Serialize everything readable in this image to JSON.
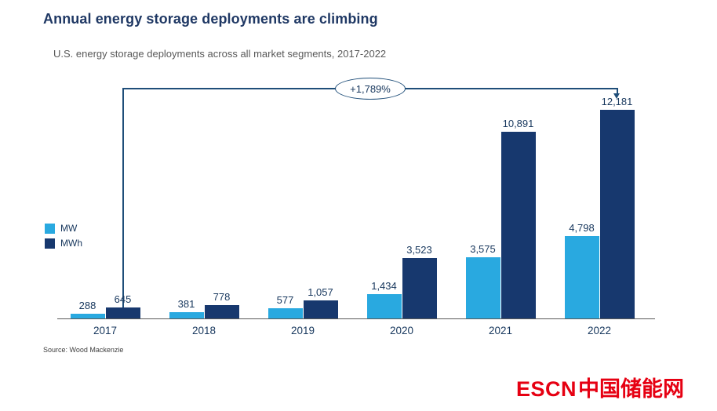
{
  "page": {
    "title": "Annual energy storage deployments are climbing",
    "subtitle": "U.S. energy storage deployments across all market segments, 2017-2022",
    "source": "Source: Wood Mackenzie",
    "logo_text": "ESCN",
    "logo_cn": "中国储能网"
  },
  "colors": {
    "mw": "#29A9E0",
    "mwh": "#17386E",
    "title_navy": "#1F3864",
    "annotation_line": "#1F4E79",
    "logo_red": "#E60012"
  },
  "annotation": {
    "label": "+1,789%"
  },
  "legend": [
    {
      "label": "MW"
    },
    {
      "label": "MWh"
    }
  ],
  "chart_data": {
    "type": "bar",
    "title": "Annual energy storage deployments are climbing",
    "subtitle": "U.S. energy storage deployments across all market segments, 2017-2022",
    "categories": [
      "2017",
      "2018",
      "2019",
      "2020",
      "2021",
      "2022"
    ],
    "series": [
      {
        "name": "MW",
        "color": "#29A9E0",
        "values": [
          288,
          381,
          577,
          1434,
          3575,
          4798
        ],
        "labels": [
          "288",
          "381",
          "577",
          "1,434",
          "3,575",
          "4,798"
        ]
      },
      {
        "name": "MWh",
        "color": "#17386E",
        "values": [
          645,
          778,
          1057,
          3523,
          10891,
          12181
        ],
        "labels": [
          "645",
          "778",
          "1,057",
          "3,523",
          "10,891",
          "12,181"
        ]
      }
    ],
    "xlabel": "",
    "ylabel": "",
    "ylim": [
      0,
      12500
    ],
    "grid": false,
    "legend_position": "middle-left",
    "annotation": "+1,789% increase from 2017 MWh to 2022 MWh",
    "source": "Source: Wood Mackenzie"
  }
}
